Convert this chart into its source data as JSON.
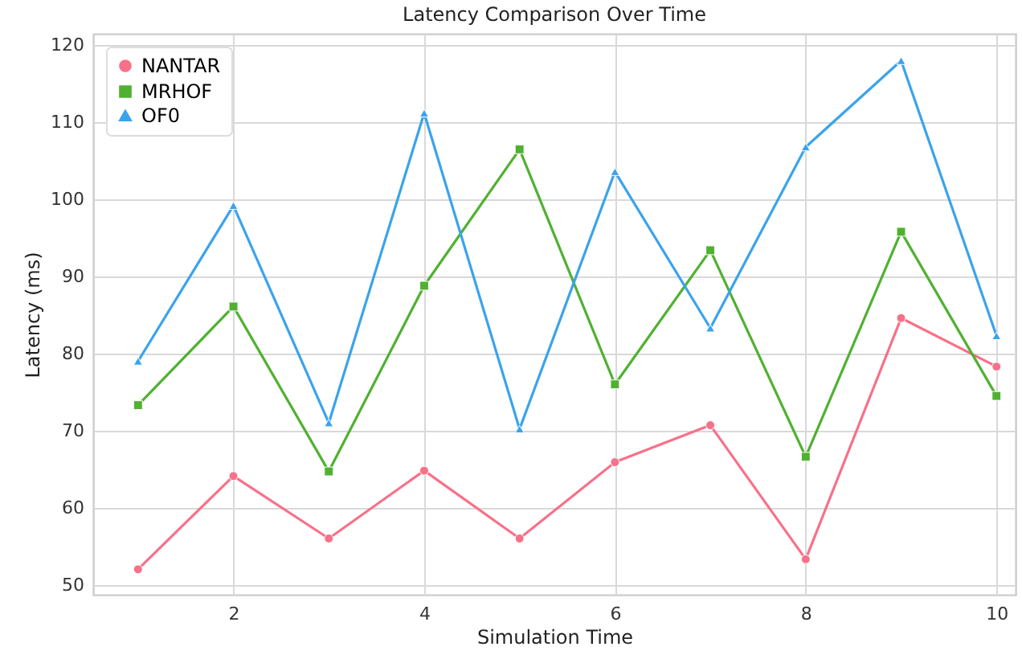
{
  "chart_data": {
    "type": "line",
    "title": "Latency Comparison Over Time",
    "xlabel": "Simulation Time",
    "ylabel": "Latency (ms)",
    "x": [
      1,
      2,
      3,
      4,
      5,
      6,
      7,
      8,
      9,
      10
    ],
    "series": [
      {
        "name": "NANTAR",
        "color": "#f77189",
        "marker": "circle",
        "values": [
          52,
          64.1,
          56,
          64.8,
          56,
          65.9,
          70.7,
          53.3,
          84.6,
          78.3
        ]
      },
      {
        "name": "MRHOF",
        "color": "#50b131",
        "marker": "square",
        "values": [
          73.3,
          86.1,
          64.7,
          88.8,
          106.5,
          76,
          93.4,
          66.6,
          95.8,
          74.5
        ]
      },
      {
        "name": "OF0",
        "color": "#3ba3ec",
        "marker": "triangle",
        "values": [
          79,
          99.2,
          71,
          111.2,
          70.2,
          103.6,
          83.3,
          106.8,
          118,
          82.3
        ]
      }
    ],
    "xlim": [
      0.53,
      10.2
    ],
    "xticks": [
      2,
      4,
      6,
      8,
      10
    ],
    "ylim": [
      48.7,
      121.5
    ],
    "yticks": [
      50,
      60,
      70,
      80,
      90,
      100,
      110,
      120
    ],
    "grid": true,
    "legend": "top left",
    "line_style": "solid"
  }
}
